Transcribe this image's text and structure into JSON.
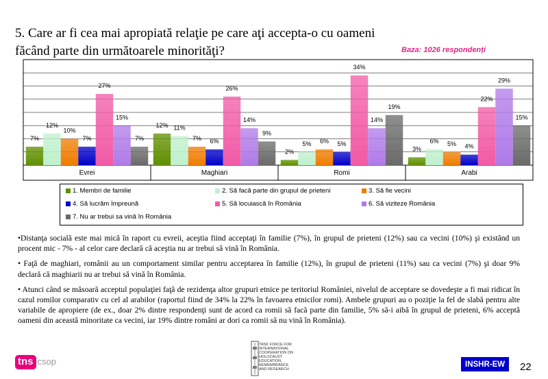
{
  "slide": {
    "title_line1": "5. Care ar fi cea mai apropiată relaţie pe care aţi accepta-o cu oameni",
    "title_line2": "făcând parte din următoarele minorităţi?",
    "base_note": "Baza: 1026 respondenți",
    "page_number": "22",
    "logo_text": "tns",
    "logo_sub": "csop",
    "inshr_label": "INSHR-EW",
    "holocaust_text": "TASK FORCE FOR INTERNATIONAL COOPERATION ON HOLOCAUST EDUCATION, REMEMBRANCE AND RESEARCH"
  },
  "chart_data": {
    "type": "bar",
    "categories": [
      "Evrei",
      "Maghiari",
      "Romi",
      "Arabi"
    ],
    "ylim": [
      0,
      40
    ],
    "grid": true,
    "legend_position": "bottom",
    "series": [
      {
        "name": "1. Membri de familie",
        "values": [
          7,
          12,
          2,
          3
        ],
        "color": "#5f8f00"
      },
      {
        "name": "2. Să facă parte din grupul de prieteni",
        "values": [
          12,
          11,
          5,
          6
        ],
        "color": "#bff0cc"
      },
      {
        "name": "3. Să fie vecini",
        "values": [
          10,
          7,
          6,
          5
        ],
        "color": "#f07c00"
      },
      {
        "name": "4. Să lucrăm împreună",
        "values": [
          7,
          6,
          5,
          4
        ],
        "color": "#0000c8"
      },
      {
        "name": "5. Să locuiască în România",
        "values": [
          27,
          26,
          34,
          22
        ],
        "color": "#f25aa6"
      },
      {
        "name": "6. Să viziteze România",
        "values": [
          15,
          14,
          14,
          29
        ],
        "color": "#b07ae8"
      },
      {
        "name": "7. Nu ar trebui sa vină în România",
        "values": [
          7,
          9,
          19,
          15
        ],
        "color": "#6a6a6a"
      }
    ]
  },
  "text_body": [
    "•Distanţa socială este mai mică în raport cu evreii, aceştia fiind acceptaţi în familie (7%), în grupul de prieteni (12%) sau ca vecini (10%) şi existând un procent mic - 7% - al celor care declară că aceştia nu ar trebui să vină în România.",
    "• Faţă de maghiari, românii au un comportament similar pentru acceptarea în familie (12%), în grupul de prieteni (11%) sau ca vecini (7%) şi doar  9% declară că maghiarii nu ar trebui să vină în România.",
    "• Atunci când se măsoară acceptul populaţiei faţă de rezidenţa altor grupuri etnice pe teritoriul României, nivelul de acceptare se dovedeşte a fi mai ridicat în cazul romilor comparativ cu cel al arabilor (raportul fiind de 34% la 22% în favoarea etnicilor romi). Ambele grupuri au o poziţie la fel de slabă pentru alte variabile de apropiere (de ex., doar 2% dintre respondenţi sunt de acord ca romii să facă parte din familie, 5% să-i aibă în grupul de prieteni, 6% acceptă oameni din această minoritate ca vecini, iar 19% dintre români ar dori ca romii să nu vină în România)."
  ]
}
